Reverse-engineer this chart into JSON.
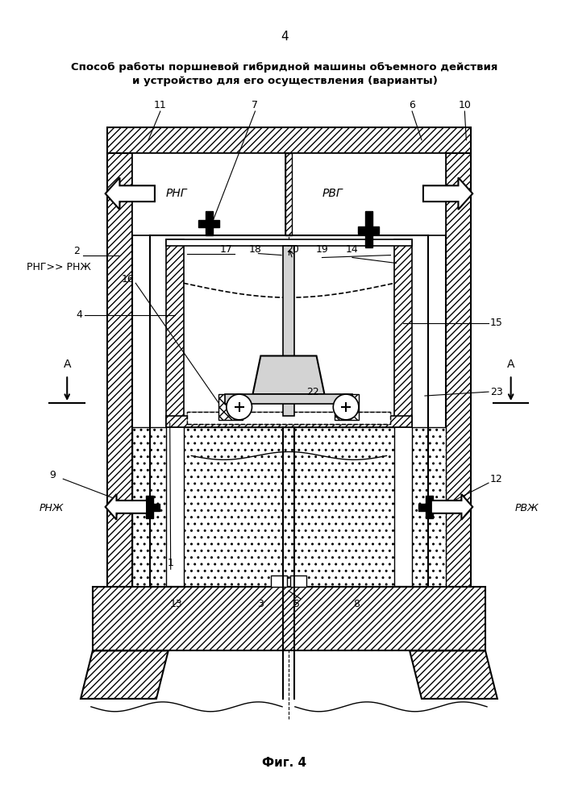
{
  "title_line1": "Способ работы поршневой гибридной машины объемного действия",
  "title_line2": "и устройство для его осуществления (варианты)",
  "page_number": "4",
  "figure_label": "Фиг. 4",
  "bg_color": "#ffffff"
}
